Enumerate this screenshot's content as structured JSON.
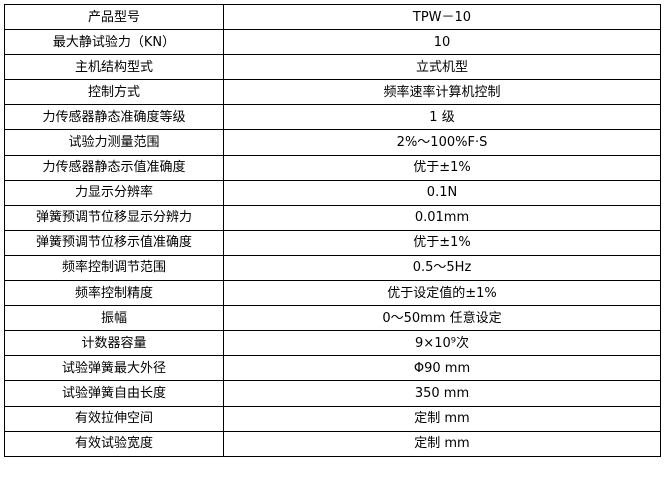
{
  "rows": [
    {
      "label": "产品型号",
      "value": "TPW－10"
    },
    {
      "label": "最大静试验力（KN）",
      "value": "10"
    },
    {
      "label": "主机结构型式",
      "value": "立式机型"
    },
    {
      "label": "控制方式",
      "value": "频率速率计算机控制"
    },
    {
      "label": "力传感器静态准确度等级",
      "value": "1 级"
    },
    {
      "label": "试验力测量范围",
      "value": "2%～100%F·S"
    },
    {
      "label": "力传感器静态示值准确度",
      "value": "优于±1%"
    },
    {
      "label": "力显示分辨率",
      "value": "0.1N"
    },
    {
      "label": "弹簧预调节位移显示分辨力",
      "value": "0.01mm"
    },
    {
      "label": "弹簧预调节位移示值准确度",
      "value": "优于±1%"
    },
    {
      "label": "频率控制调节范围",
      "value": "0.5～5Hz"
    },
    {
      "label": "频率控制精度",
      "value": "优于设定值的±1%"
    },
    {
      "label": "振幅",
      "value": "0～50mm 任意设定"
    },
    {
      "label": "计数器容量",
      "value": "9×10⁹次"
    },
    {
      "label": "试验弹簧最大外径",
      "value": "Φ90 mm"
    },
    {
      "label": "试验弹簧自由长度",
      "value": "350 mm"
    },
    {
      "label": "有效拉伸空间",
      "value": "定制 mm"
    },
    {
      "label": "有效试验宽度",
      "value": "定制 mm"
    }
  ]
}
